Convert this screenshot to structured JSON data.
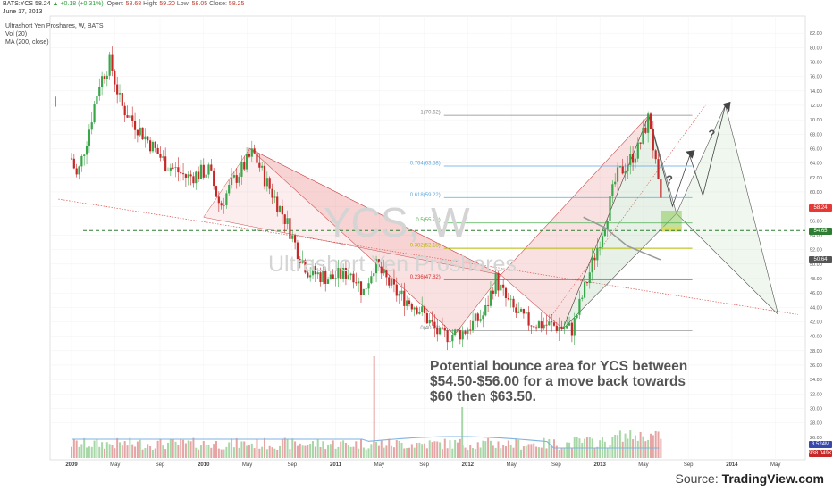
{
  "header": {
    "symbol": "BATS:YCS",
    "last": "58.24",
    "change": "+0.18 (+0.31%)",
    "open_label": "Open:",
    "open": "58.68",
    "high_label": "High:",
    "high": "59.20",
    "low_label": "Low:",
    "low": "58.05",
    "close_label": "Close:",
    "close": "58.25",
    "date": "June 17, 2013"
  },
  "legend": {
    "title": "Ultrashort Yen Proshares, W, BATS",
    "vol": "Vol (20)",
    "ma": "MA (200, close)"
  },
  "watermark": {
    "symbol": "YCS, W",
    "name": "Ultrashort Yen Proshares"
  },
  "annotation": "Potential bounce area for YCS between $54.50-$56.00 for a move back towards $60 then $63.50.",
  "source": {
    "prefix": "Source: ",
    "brand": "TradingView.com"
  },
  "price_tags": {
    "last": "58.24",
    "current": "54.65",
    "ma": "50.64",
    "vol_high": "3.524M",
    "vol_low": "938.049K",
    "last_color": "#e53935",
    "level_color": "#2e7d32",
    "ma_color": "#555555",
    "vol_color": "#3949ab"
  },
  "colors": {
    "up": "#3aa64a",
    "down": "#c62828",
    "volume_up": "#a7d7a7",
    "volume_down": "#e6a5a5",
    "ma": "#999999",
    "fib_1": "#888888",
    "fib_764": "#5da8e0",
    "fib_618": "#5da8e0",
    "fib_5": "#4caf50",
    "fib_382": "#b5b800",
    "fib_236": "#d32f2f",
    "support": "#2e7d32"
  },
  "chart_data": {
    "type": "candlestick",
    "interval": "weekly",
    "title": "Ultrashort Yen Proshares, W, BATS",
    "y_axis": {
      "position": "right",
      "ylim": [
        23.5,
        83.5
      ],
      "ticks": [
        26,
        28,
        30,
        32,
        34,
        36,
        38,
        40,
        42,
        44,
        46,
        48,
        50,
        52,
        54,
        56,
        58,
        60,
        62,
        64,
        66,
        68,
        70,
        72,
        74,
        76,
        78,
        80,
        82
      ]
    },
    "x_axis": {
      "ticks": [
        "2009",
        "May",
        "Sep",
        "2010",
        "May",
        "Sep",
        "2011",
        "May",
        "Sep",
        "2012",
        "May",
        "Sep",
        "2013",
        "May",
        "Sep",
        "2014",
        "May"
      ]
    },
    "price_path": [
      {
        "x": "2008-11",
        "y": 72.5
      },
      {
        "x": "2009-01",
        "y": 62
      },
      {
        "x": "2009-02",
        "y": 68
      },
      {
        "x": "2009-03",
        "y": 75
      },
      {
        "x": "2009-04",
        "y": 78
      },
      {
        "x": "2009-05",
        "y": 72
      },
      {
        "x": "2009-07",
        "y": 68
      },
      {
        "x": "2009-09",
        "y": 64
      },
      {
        "x": "2009-11",
        "y": 62
      },
      {
        "x": "2010-01",
        "y": 63
      },
      {
        "x": "2010-02",
        "y": 58
      },
      {
        "x": "2010-03",
        "y": 61
      },
      {
        "x": "2010-05",
        "y": 65.5
      },
      {
        "x": "2010-06",
        "y": 62
      },
      {
        "x": "2010-08",
        "y": 56
      },
      {
        "x": "2010-09",
        "y": 52
      },
      {
        "x": "2010-10",
        "y": 49
      },
      {
        "x": "2010-12",
        "y": 48
      },
      {
        "x": "2011-02",
        "y": 49
      },
      {
        "x": "2011-03",
        "y": 46
      },
      {
        "x": "2011-04",
        "y": 50
      },
      {
        "x": "2011-06",
        "y": 46
      },
      {
        "x": "2011-08",
        "y": 44
      },
      {
        "x": "2011-10",
        "y": 40
      },
      {
        "x": "2011-12",
        "y": 40.5
      },
      {
        "x": "2012-02",
        "y": 43
      },
      {
        "x": "2012-03",
        "y": 48
      },
      {
        "x": "2012-04",
        "y": 45
      },
      {
        "x": "2012-05",
        "y": 43
      },
      {
        "x": "2012-06",
        "y": 42
      },
      {
        "x": "2012-08",
        "y": 41.5
      },
      {
        "x": "2012-10",
        "y": 41
      },
      {
        "x": "2012-11",
        "y": 46
      },
      {
        "x": "2012-12",
        "y": 51
      },
      {
        "x": "2013-01",
        "y": 56
      },
      {
        "x": "2013-02",
        "y": 62
      },
      {
        "x": "2013-04",
        "y": 66
      },
      {
        "x": "2013-05",
        "y": 70.6
      },
      {
        "x": "2013-06",
        "y": 58.2
      }
    ],
    "moving_average": {
      "name": "MA (200, close)",
      "points": [
        {
          "x": "2012-11",
          "y": 56.5
        },
        {
          "x": "2013-01",
          "y": 55
        },
        {
          "x": "2013-03",
          "y": 52.5
        },
        {
          "x": "2013-06",
          "y": 50.6
        }
      ]
    },
    "volume": {
      "ylim": [
        0,
        16
      ],
      "spikes": [
        {
          "x": "2011-04",
          "value": 15
        },
        {
          "x": "2011-12",
          "value": 7.5
        }
      ]
    },
    "fibonacci": [
      {
        "label": "1(70.62)",
        "value": 70.62
      },
      {
        "label": "0.764(63.58)",
        "value": 63.58
      },
      {
        "label": "0.618(59.22)",
        "value": 59.22
      },
      {
        "label": "0.5(55.70)",
        "value": 55.7
      },
      {
        "label": "0.382(52.18)",
        "value": 52.18
      },
      {
        "label": "0.236(47.82)",
        "value": 47.82
      },
      {
        "label": "0(40.78)",
        "value": 40.78
      }
    ],
    "support_line": 54.65,
    "question_marks": [
      "?",
      "?"
    ]
  }
}
